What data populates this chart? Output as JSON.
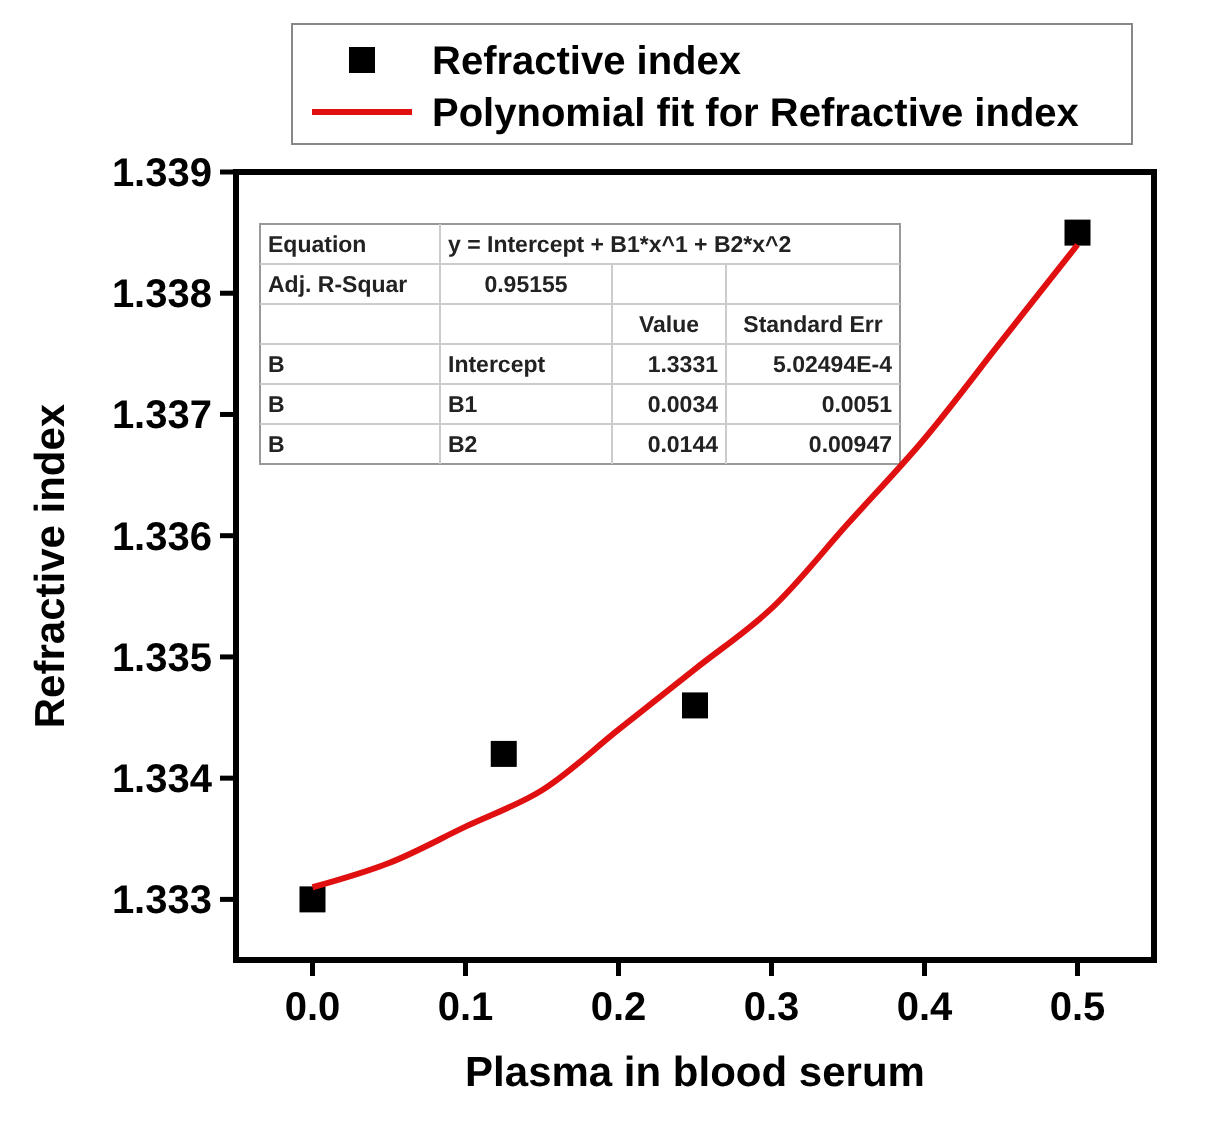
{
  "chart_data": {
    "type": "scatter",
    "xlabel": "Plasma in blood serum",
    "ylabel": "Refractive index",
    "xlim": [
      -0.05,
      0.55
    ],
    "ylim": [
      1.3325,
      1.339
    ],
    "xticks": [
      {
        "value": 0,
        "label": "0.0"
      },
      0.1,
      0.2,
      0.3,
      0.4,
      0.5
    ],
    "yticks": [
      1.333,
      1.334,
      1.335,
      1.336,
      1.337,
      1.338,
      1.339
    ],
    "legend": "top",
    "grid": false,
    "series": [
      {
        "name": "Refractive index",
        "marker": "square",
        "color": "#000000",
        "x": [
          0,
          0.125,
          0.25,
          0.5
        ],
        "values": [
          1.333,
          1.3342,
          1.3346,
          1.3385
        ]
      },
      {
        "name": "Polynomial fit for  Refractive index",
        "type": "line",
        "marker": "none",
        "line_style": "solid",
        "color": "#e01010",
        "x": [
          0,
          0.05,
          0.1,
          0.15,
          0.2,
          0.25,
          0.3,
          0.35,
          0.4,
          0.45,
          0.5
        ],
        "values": [
          1.3331,
          1.3333,
          1.3336,
          1.3339,
          1.3344,
          1.3349,
          1.3354,
          1.3361,
          1.3368,
          1.3376,
          1.3384
        ]
      }
    ],
    "annotations": [
      "Equation",
      "y = Intercept + B1*x^1 + B2*x^2",
      "Adj. R-Squar",
      "0.95155",
      "Value",
      "Standard Err",
      "B",
      "Intercept",
      "1.3331",
      "5.02494E-4",
      "B",
      "B1",
      "0.0034",
      "0.0051",
      "B",
      "B2",
      "0.0144",
      "0.00947"
    ]
  }
}
